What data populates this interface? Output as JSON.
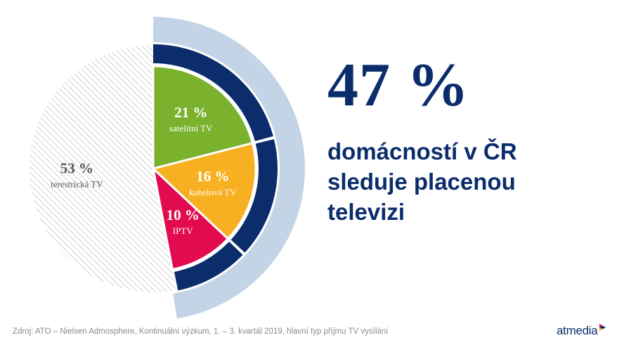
{
  "chart_data": {
    "type": "pie",
    "slices": [
      {
        "label": "satelitní TV",
        "value": 21,
        "value_label": "21 %",
        "color": "#7ab22e",
        "text_color": "#ffffff"
      },
      {
        "label": "kabelová TV",
        "value": 16,
        "value_label": "16 %",
        "color": "#f7b021",
        "text_color": "#ffffff"
      },
      {
        "label": "IPTV",
        "value": 10,
        "value_label": "10 %",
        "color": "#e30b4f",
        "text_color": "#ffffff"
      },
      {
        "label": "terestrická TV",
        "value": 53,
        "value_label": "53 %",
        "color": "#d9d9d9",
        "pattern": "diagonal-hatch",
        "text_color": "#555555"
      }
    ],
    "highlight_total": {
      "value": 47,
      "label": "47 %"
    },
    "colors": {
      "dark_ring": "#0b2d6b",
      "outer_ring": "#c3d4e6",
      "hatch_line": "#cfcfcf"
    }
  },
  "headline": {
    "value": "47 %",
    "lines": [
      "domácností v ČR",
      "sleduje placenou",
      "televizi"
    ]
  },
  "source": "Zdroj: ATO – Nielsen Admosphere, Kontinuální výzkum,  1. – 3. kvartál 2019, hlavní typ příjmu TV vysílání",
  "logo": {
    "text": "atmedia",
    "mark_colors": [
      "#0b2d6b",
      "#e30b4f",
      "#f7b021"
    ]
  }
}
